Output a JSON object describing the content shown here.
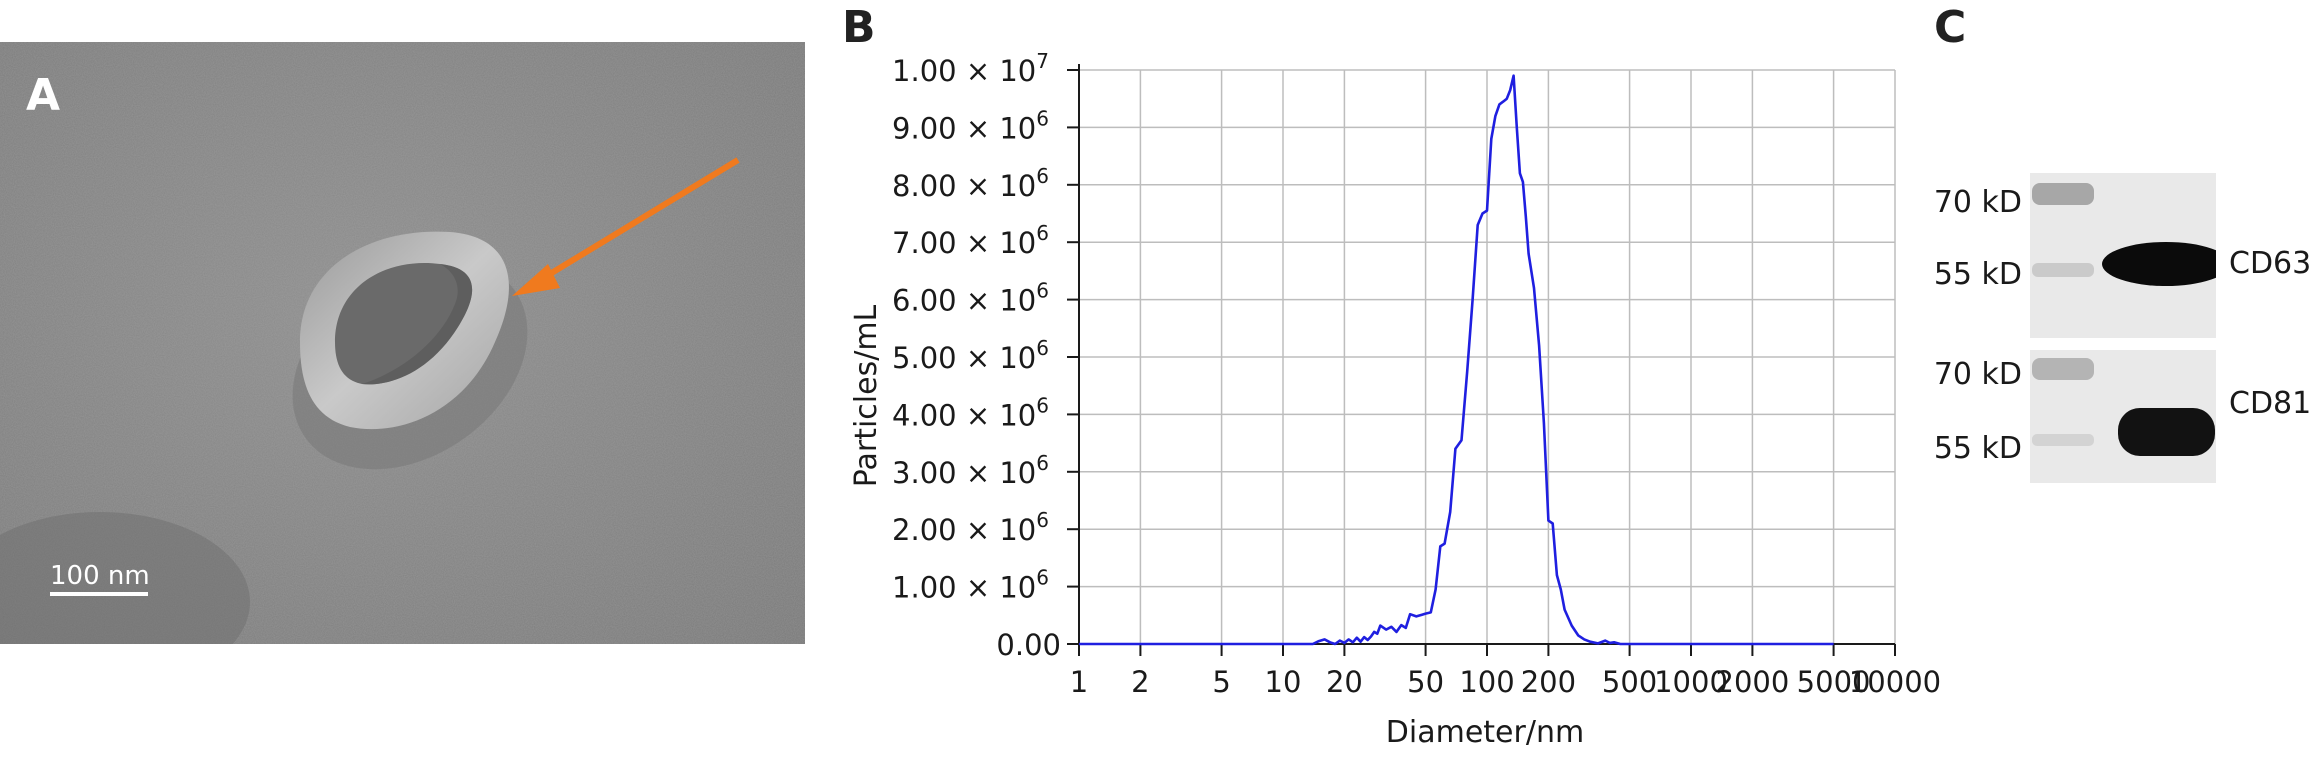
{
  "panels": {
    "a": {
      "letter": "A",
      "scale_bar_label": "100 nm"
    },
    "b": {
      "letter": "B"
    },
    "c": {
      "letter": "C",
      "blots": [
        {
          "markers": [
            "70 kD",
            "55 kD"
          ],
          "target": "CD63"
        },
        {
          "markers": [
            "70 kD",
            "55 kD"
          ],
          "target": "CD81"
        }
      ]
    }
  },
  "colors": {
    "line": "#1f1fe0",
    "arrow": "#f07a1e",
    "grid": "#bdbdbd"
  },
  "chart_data": {
    "type": "line",
    "xlabel": "Diameter/nm",
    "ylabel": "Particles/mL",
    "x_scale": "log",
    "xlim": [
      1,
      10000
    ],
    "ylim": [
      0,
      10000000
    ],
    "grid": true,
    "x_ticks": [
      {
        "value": 1,
        "label": "1"
      },
      {
        "value": 2,
        "label": "2"
      },
      {
        "value": 5,
        "label": "5"
      },
      {
        "value": 10,
        "label": "10"
      },
      {
        "value": 20,
        "label": "20"
      },
      {
        "value": 50,
        "label": "50"
      },
      {
        "value": 100,
        "label": "100"
      },
      {
        "value": 200,
        "label": "200"
      },
      {
        "value": 500,
        "label": "500"
      },
      {
        "value": 1000,
        "label": "1000"
      },
      {
        "value": 2000,
        "label": "2000"
      },
      {
        "value": 5000,
        "label": "5000"
      },
      {
        "value": 10000,
        "label": "10000"
      }
    ],
    "y_ticks": [
      {
        "value": 0,
        "label": "0.00"
      },
      {
        "value": 1000000,
        "label": "1.00 × 10",
        "exp": "6"
      },
      {
        "value": 2000000,
        "label": "2.00 × 10",
        "exp": "6"
      },
      {
        "value": 3000000,
        "label": "3.00 × 10",
        "exp": "6"
      },
      {
        "value": 4000000,
        "label": "4.00 × 10",
        "exp": "6"
      },
      {
        "value": 5000000,
        "label": "5.00 × 10",
        "exp": "6"
      },
      {
        "value": 6000000,
        "label": "6.00 × 10",
        "exp": "6"
      },
      {
        "value": 7000000,
        "label": "7.00 × 10",
        "exp": "6"
      },
      {
        "value": 8000000,
        "label": "8.00 × 10",
        "exp": "6"
      },
      {
        "value": 9000000,
        "label": "9.00 × 10",
        "exp": "6"
      },
      {
        "value": 10000000,
        "label": "1.00 × 10",
        "exp": "7"
      }
    ],
    "series": [
      {
        "x": [
          1,
          14,
          15,
          16,
          17,
          18,
          19,
          20,
          21,
          22,
          23,
          24,
          25,
          26,
          27,
          28,
          29,
          30,
          32,
          34,
          36,
          38,
          40,
          42,
          45,
          48,
          50,
          53,
          56,
          59,
          62,
          66,
          70,
          75,
          80,
          85,
          90,
          95,
          100,
          105,
          110,
          115,
          120,
          125,
          130,
          135,
          140,
          145,
          150,
          155,
          160,
          170,
          180,
          190,
          200,
          210,
          220,
          230,
          240,
          260,
          280,
          300,
          320,
          350,
          380,
          400,
          420,
          450,
          480,
          500,
          550,
          600,
          5000
        ],
        "y": [
          0,
          0,
          50000,
          80000,
          30000,
          0,
          60000,
          20000,
          80000,
          30000,
          110000,
          40000,
          120000,
          70000,
          130000,
          210000,
          180000,
          320000,
          250000,
          300000,
          210000,
          330000,
          280000,
          520000,
          480000,
          510000,
          530000,
          550000,
          950000,
          1700000,
          1750000,
          2300000,
          3400000,
          3550000,
          4750000,
          6000000,
          7300000,
          7500000,
          7550000,
          8800000,
          9200000,
          9400000,
          9450000,
          9500000,
          9650000,
          9900000,
          9000000,
          8200000,
          8050000,
          7450000,
          6800000,
          6200000,
          5200000,
          3850000,
          2150000,
          2100000,
          1200000,
          950000,
          600000,
          320000,
          150000,
          80000,
          40000,
          10000,
          60000,
          20000,
          30000,
          0,
          0,
          0,
          0,
          0,
          0
        ]
      }
    ]
  }
}
